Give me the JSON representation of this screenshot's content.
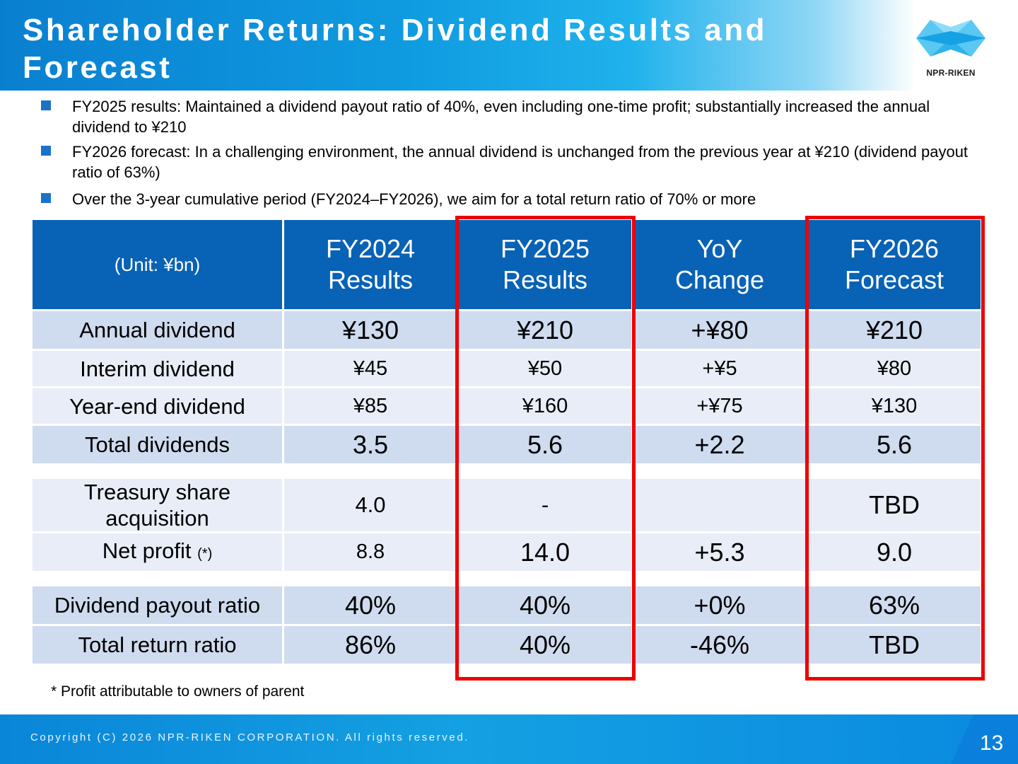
{
  "header": {
    "title": "Shareholder Returns: Dividend Results and Forecast",
    "logo_text": "NPR-RIKEN"
  },
  "bullets": [
    "FY2025 results: Maintained a dividend payout ratio of 40%, even including one-time profit; substantially increased the annual dividend to ¥210",
    "FY2026 forecast: In a challenging environment, the annual dividend is unchanged from the previous year at ¥210 (dividend payout ratio of 63%)",
    "Over the 3-year cumulative period (FY2024–FY2026), we aim for a total return ratio of 70% or more"
  ],
  "table": {
    "unit": "(Unit: ¥bn)",
    "columns": [
      {
        "line1": "FY2024",
        "line2": "Results"
      },
      {
        "line1": "FY2025",
        "line2": "Results"
      },
      {
        "line1": "YoY",
        "line2": "Change"
      },
      {
        "line1": "FY2026",
        "line2": "Forecast"
      }
    ],
    "rows": {
      "annual_dividend": {
        "label": "Annual dividend",
        "values": [
          "¥130",
          "¥210",
          "+¥80",
          "¥210"
        ]
      },
      "interim_dividend": {
        "label": "Interim dividend",
        "values": [
          "¥45",
          "¥50",
          "+¥5",
          "¥80"
        ]
      },
      "year_end_dividend": {
        "label": "Year-end dividend",
        "values": [
          "¥85",
          "¥160",
          "+¥75",
          "¥130"
        ]
      },
      "total_dividends": {
        "label": "Total dividends",
        "values": [
          "3.5",
          "5.6",
          "+2.2",
          "5.6"
        ]
      },
      "treasury_share": {
        "label_line1": "Treasury share",
        "label_line2": "acquisition",
        "values": [
          "4.0",
          "-",
          "",
          "TBD"
        ]
      },
      "net_profit": {
        "label": "Net profit",
        "note": "(*)",
        "values": [
          "8.8",
          "14.0",
          "+5.3",
          "9.0"
        ]
      },
      "payout_ratio": {
        "label": "Dividend payout ratio",
        "values": [
          "40%",
          "40%",
          "+0%",
          "63%"
        ]
      },
      "total_return": {
        "label": "Total return ratio",
        "values": [
          "86%",
          "40%",
          "-46%",
          "TBD"
        ]
      }
    }
  },
  "footnote": "* Profit attributable to owners of parent",
  "footer": {
    "copyright": "Copyright (C) 2026 NPR-RIKEN CORPORATION. All rights reserved.",
    "page": "13"
  },
  "colors": {
    "header_blue": "#0a7fd0",
    "table_header": "#0862b5",
    "row_dark": "#cfdbee",
    "row_light": "#e8edf7",
    "highlight_red": "#ee0000"
  }
}
